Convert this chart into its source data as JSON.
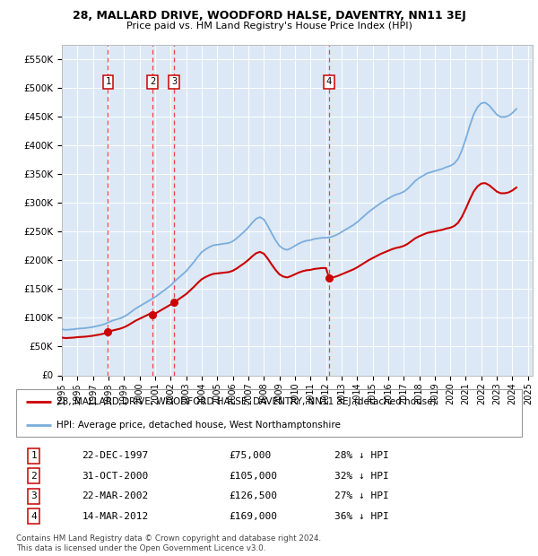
{
  "title": "28, MALLARD DRIVE, WOODFORD HALSE, DAVENTRY, NN11 3EJ",
  "subtitle": "Price paid vs. HM Land Registry's House Price Index (HPI)",
  "plot_bg_color": "#dce8f5",
  "yticks": [
    0,
    50000,
    100000,
    150000,
    200000,
    250000,
    300000,
    350000,
    400000,
    450000,
    500000,
    550000
  ],
  "ylim": [
    0,
    575000
  ],
  "xlim_start": 1995.0,
  "xlim_end": 2025.3,
  "sale_dates": [
    1997.97,
    2000.83,
    2002.22,
    2012.2
  ],
  "sale_prices": [
    75000,
    105000,
    126500,
    169000
  ],
  "sale_labels": [
    "1",
    "2",
    "3",
    "4"
  ],
  "hpi_color": "#7aaddd",
  "sale_color": "#cc0000",
  "vline_color": "#ee4444",
  "legend_sale_label": "28, MALLARD DRIVE, WOODFORD HALSE, DAVENTRY, NN11 3EJ (detached house)",
  "legend_hpi_label": "HPI: Average price, detached house, West Northamptonshire",
  "table_rows": [
    {
      "num": "1",
      "date": "22-DEC-1997",
      "price": "£75,000",
      "pct": "28% ↓ HPI"
    },
    {
      "num": "2",
      "date": "31-OCT-2000",
      "price": "£105,000",
      "pct": "32% ↓ HPI"
    },
    {
      "num": "3",
      "date": "22-MAR-2002",
      "price": "£126,500",
      "pct": "27% ↓ HPI"
    },
    {
      "num": "4",
      "date": "14-MAR-2012",
      "price": "£169,000",
      "pct": "36% ↓ HPI"
    }
  ],
  "footer": "Contains HM Land Registry data © Crown copyright and database right 2024.\nThis data is licensed under the Open Government Licence v3.0.",
  "hpi_years": [
    1995.0,
    1995.25,
    1995.5,
    1995.75,
    1996.0,
    1996.25,
    1996.5,
    1996.75,
    1997.0,
    1997.25,
    1997.5,
    1997.75,
    1998.0,
    1998.25,
    1998.5,
    1998.75,
    1999.0,
    1999.25,
    1999.5,
    1999.75,
    2000.0,
    2000.25,
    2000.5,
    2000.75,
    2001.0,
    2001.25,
    2001.5,
    2001.75,
    2002.0,
    2002.25,
    2002.5,
    2002.75,
    2003.0,
    2003.25,
    2003.5,
    2003.75,
    2004.0,
    2004.25,
    2004.5,
    2004.75,
    2005.0,
    2005.25,
    2005.5,
    2005.75,
    2006.0,
    2006.25,
    2006.5,
    2006.75,
    2007.0,
    2007.25,
    2007.5,
    2007.75,
    2008.0,
    2008.25,
    2008.5,
    2008.75,
    2009.0,
    2009.25,
    2009.5,
    2009.75,
    2010.0,
    2010.25,
    2010.5,
    2010.75,
    2011.0,
    2011.25,
    2011.5,
    2011.75,
    2012.0,
    2012.25,
    2012.5,
    2012.75,
    2013.0,
    2013.25,
    2013.5,
    2013.75,
    2014.0,
    2014.25,
    2014.5,
    2014.75,
    2015.0,
    2015.25,
    2015.5,
    2015.75,
    2016.0,
    2016.25,
    2016.5,
    2016.75,
    2017.0,
    2017.25,
    2017.5,
    2017.75,
    2018.0,
    2018.25,
    2018.5,
    2018.75,
    2019.0,
    2019.25,
    2019.5,
    2019.75,
    2020.0,
    2020.25,
    2020.5,
    2020.75,
    2021.0,
    2021.25,
    2021.5,
    2021.75,
    2022.0,
    2022.25,
    2022.5,
    2022.75,
    2023.0,
    2023.25,
    2023.5,
    2023.75,
    2024.0,
    2024.25
  ],
  "hpi_values": [
    80000,
    79000,
    79500,
    80000,
    81000,
    81500,
    82000,
    83000,
    84000,
    85500,
    87000,
    89000,
    92000,
    95000,
    97000,
    99000,
    102000,
    106000,
    111000,
    116000,
    120000,
    124000,
    128000,
    132000,
    136000,
    141000,
    146000,
    151000,
    156000,
    163000,
    169000,
    175000,
    181000,
    189000,
    197000,
    206000,
    214000,
    219000,
    223000,
    226000,
    227000,
    228000,
    229000,
    230000,
    233000,
    238000,
    244000,
    250000,
    257000,
    265000,
    272000,
    275000,
    271000,
    260000,
    247000,
    235000,
    225000,
    220000,
    218000,
    221000,
    225000,
    229000,
    232000,
    234000,
    235000,
    237000,
    238000,
    239000,
    239000,
    240000,
    242000,
    245000,
    249000,
    253000,
    257000,
    261000,
    266000,
    272000,
    278000,
    284000,
    289000,
    294000,
    299000,
    303000,
    307000,
    311000,
    314000,
    316000,
    319000,
    324000,
    331000,
    338000,
    343000,
    347000,
    351000,
    353000,
    355000,
    357000,
    359000,
    362000,
    364000,
    368000,
    376000,
    391000,
    411000,
    433000,
    453000,
    466000,
    473000,
    474000,
    469000,
    461000,
    453000,
    449000,
    449000,
    451000,
    456000,
    463000
  ],
  "xtick_years": [
    1995,
    1996,
    1997,
    1998,
    1999,
    2000,
    2001,
    2002,
    2003,
    2004,
    2005,
    2006,
    2007,
    2008,
    2009,
    2010,
    2011,
    2012,
    2013,
    2014,
    2015,
    2016,
    2017,
    2018,
    2019,
    2020,
    2021,
    2022,
    2023,
    2024,
    2025
  ]
}
